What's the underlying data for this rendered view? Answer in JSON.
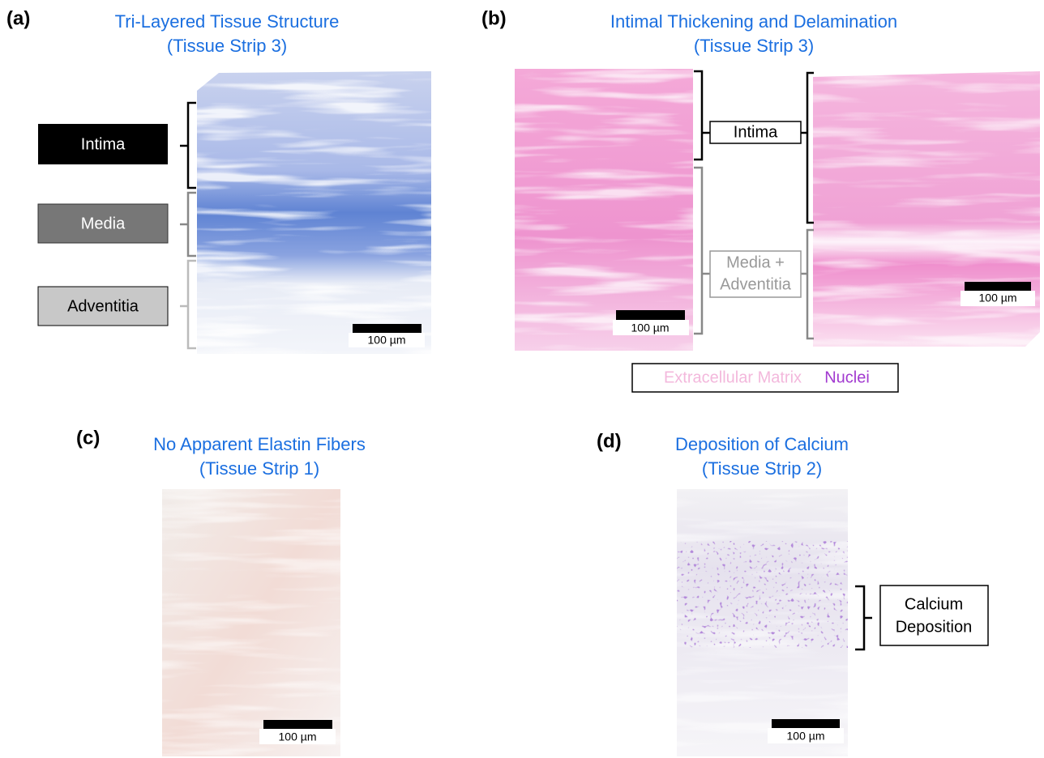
{
  "panels": [
    {
      "label": "(a)",
      "title": [
        "Tri-Layered Tissue Structure",
        "(Tissue Strip 3)"
      ],
      "layers": [
        "Intima",
        "Media",
        "Adventitia"
      ],
      "scale_bar": "100 µm"
    },
    {
      "label": "(b)",
      "title": [
        "Intimal Thickening and Delamination",
        "(Tissue Strip 3)"
      ],
      "layers": [
        [
          "Intima"
        ],
        [
          "Media +",
          "Adventitia"
        ]
      ],
      "scale_bars": [
        "100 µm",
        "100 µm"
      ],
      "legend": [
        "Extracellular Matrix",
        "Nuclei"
      ]
    },
    {
      "label": "(c)",
      "title": [
        "No Apparent Elastin Fibers",
        "(Tissue Strip 1)"
      ],
      "scale_bar": "100 µm"
    },
    {
      "label": "(d)",
      "title": [
        "Deposition of Calcium",
        "(Tissue Strip 2)"
      ],
      "annotation": [
        "Calcium",
        "Deposition"
      ],
      "scale_bar": "100 µm"
    }
  ]
}
